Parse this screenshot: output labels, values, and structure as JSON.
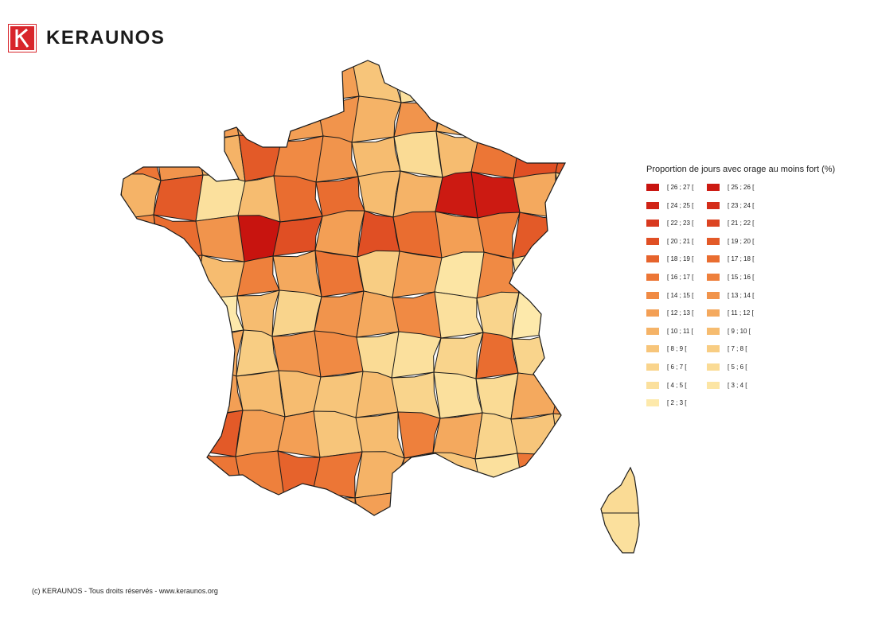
{
  "brand": {
    "name": "KERAUNOS",
    "accent": "#d8252b"
  },
  "legend": {
    "title": "Proportion de jours avec orage au moins fort (%)",
    "classes": [
      {
        "label": "[ 26 ; 27 [",
        "color": "#c8140f"
      },
      {
        "label": "[ 25 ; 26 [",
        "color": "#cc1a12"
      },
      {
        "label": "[ 24 ; 25 [",
        "color": "#d02316"
      },
      {
        "label": "[ 23 ; 24 [",
        "color": "#d42d1a"
      },
      {
        "label": "[ 22 ; 23 [",
        "color": "#d8391f"
      },
      {
        "label": "[ 21 ; 22 [",
        "color": "#dc4422"
      },
      {
        "label": "[ 20 ; 21 [",
        "color": "#e04f24"
      },
      {
        "label": "[ 19 ; 20 [",
        "color": "#e35a28"
      },
      {
        "label": "[ 18 ; 19 [",
        "color": "#e6632c"
      },
      {
        "label": "[ 17 ; 18 [",
        "color": "#e96d30"
      },
      {
        "label": "[ 16 ; 17 [",
        "color": "#ec7636"
      },
      {
        "label": "[ 15 ; 16 [",
        "color": "#ee803c"
      },
      {
        "label": "[ 14 ; 15 [",
        "color": "#f08a44"
      },
      {
        "label": "[ 13 ; 14 [",
        "color": "#f1944c"
      },
      {
        "label": "[ 12 ; 13 [",
        "color": "#f39f55"
      },
      {
        "label": "[ 11 ; 12 [",
        "color": "#f4a95e"
      },
      {
        "label": "[ 10 ; 11 [",
        "color": "#f5b367"
      },
      {
        "label": "[ 9 ; 10 [",
        "color": "#f6bc70"
      },
      {
        "label": "[ 8 ; 9 [",
        "color": "#f7c57a"
      },
      {
        "label": "[ 7 ; 8 [",
        "color": "#f8cd83"
      },
      {
        "label": "[ 6 ; 7 [",
        "color": "#f9d48c"
      },
      {
        "label": "[ 5 ; 6 [",
        "color": "#fadb95"
      },
      {
        "label": "[ 4 ; 5 [",
        "color": "#fbe09d"
      },
      {
        "label": "[ 3 ; 4 [",
        "color": "#fce5a4"
      },
      {
        "label": "[ 2 ; 3 [",
        "color": "#fde9ab"
      }
    ]
  },
  "footer": "(c) KERAUNOS - Tous droits réservés - www.keraunos.org",
  "regions": [
    {
      "cls": 10
    },
    {
      "cls": 11
    },
    {
      "cls": 8
    },
    {
      "cls": 10
    },
    {
      "cls": 16
    },
    {
      "cls": 14
    },
    {
      "cls": 18
    },
    {
      "cls": 22
    },
    {
      "cls": 10
    },
    {
      "cls": 10
    },
    {
      "cls": 5
    },
    {
      "cls": 12
    },
    {
      "cls": 12
    },
    {
      "cls": 6
    },
    {
      "cls": 14
    },
    {
      "cls": 14
    },
    {
      "cls": 14
    },
    {
      "cls": 13
    },
    {
      "cls": 16
    },
    {
      "cls": 13
    },
    {
      "cls": 16
    },
    {
      "cls": 11
    },
    {
      "cls": 14
    },
    {
      "cls": 17
    },
    {
      "cls": 10
    },
    {
      "cls": 13
    },
    {
      "cls": 16
    },
    {
      "cls": 7
    },
    {
      "cls": 12
    },
    {
      "cls": 13
    },
    {
      "cls": 17
    },
    {
      "cls": 21
    },
    {
      "cls": 17
    },
    {
      "cls": 10
    },
    {
      "cls": 6
    },
    {
      "cls": 7
    },
    {
      "cls": 16
    },
    {
      "cls": 7
    },
    {
      "cls": 22
    },
    {
      "cls": 17
    },
    {
      "cls": 9
    },
    {
      "cls": 9
    },
    {
      "cls": 17
    },
    {
      "cls": 16
    },
    {
      "cls": 1
    },
    {
      "cls": 1
    },
    {
      "cls": 15
    },
    {
      "cls": 20
    },
    {
      "cls": 12
    },
    {
      "cls": 9
    },
    {
      "cls": 13
    },
    {
      "cls": 0
    },
    {
      "cls": 6
    },
    {
      "cls": 14
    },
    {
      "cls": 6
    },
    {
      "cls": 9
    },
    {
      "cls": 14
    },
    {
      "cls": 11
    },
    {
      "cls": 7
    },
    {
      "cls": 10
    },
    {
      "cls": 13
    },
    {
      "cls": 12
    },
    {
      "cls": 17
    },
    {
      "cls": 11
    },
    {
      "cls": 15
    },
    {
      "cls": 10
    },
    {
      "cls": 19
    },
    {
      "cls": 14
    },
    {
      "cls": 23
    },
    {
      "cls": 12
    },
    {
      "cls": 23
    },
    {
      "cls": 10
    },
    {
      "cls": 14
    },
    {
      "cls": 10
    },
    {
      "cls": 24
    },
    {
      "cls": 17
    },
    {
      "cls": 20
    },
    {
      "cls": 13
    },
    {
      "cls": 15
    },
    {
      "cls": 12
    },
    {
      "cls": 22
    },
    {
      "cls": 20
    },
    {
      "cls": 24
    },
    {
      "cls": 21
    },
    {
      "cls": 21
    },
    {
      "cls": 1
    },
    {
      "cls": 15
    },
    {
      "cls": 19
    },
    {
      "cls": 13
    },
    {
      "cls": 12
    },
    {
      "cls": 21
    },
    {
      "cls": 22
    },
    {
      "cls": 20
    },
    {
      "cls": 9
    },
    {
      "cls": 20
    },
    {
      "cls": 13
    },
    {
      "cls": 7
    },
    {
      "cls": 8
    },
    {
      "cls": 14
    },
    {
      "cls": 17
    },
    {
      "cls": 17
    },
    {
      "cls": 18
    },
    {
      "cls": 17
    },
    {
      "cls": 20
    },
    {
      "cls": 22
    },
    {
      "cls": 21
    },
    {
      "cls": 15
    },
    {
      "cls": 12
    },
    {
      "cls": 23
    },
    {
      "cls": 22
    },
    {
      "cls": 7
    },
    {
      "cls": 14
    },
    {
      "cls": 14
    },
    {
      "cls": 18
    },
    {
      "cls": 17
    },
    {
      "cls": 11
    },
    {
      "cls": 15
    },
    {
      "cls": 20
    },
    {
      "cls": 18
    },
    {
      "cls": 18
    },
    {
      "cls": 18
    },
    {
      "cls": 21
    }
  ]
}
